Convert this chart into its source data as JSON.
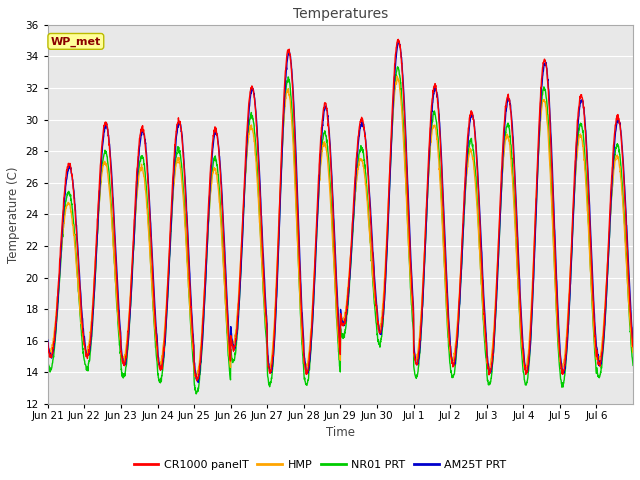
{
  "title": "Temperatures",
  "xlabel": "Time",
  "ylabel": "Temperature (C)",
  "ylim": [
    12,
    36
  ],
  "annotation_text": "WP_met",
  "annotation_color": "#8B0000",
  "annotation_bg": "#FFFF99",
  "fig_bg": "#FFFFFF",
  "plot_bg": "#E8E8E8",
  "grid_color": "#FFFFFF",
  "legend_entries": [
    "CR1000 panelT",
    "HMP",
    "NR01 PRT",
    "AM25T PRT"
  ],
  "legend_colors": [
    "#FF0000",
    "#FFA500",
    "#00CC00",
    "#0000CC"
  ],
  "line_width": 1.0,
  "tick_labels": [
    "Jun 21",
    "Jun 22",
    "Jun 23",
    "Jun 24",
    "Jun 25",
    "Jun 26",
    "Jun 27",
    "Jun 28",
    "Jun 29",
    "Jun 30",
    "Jul 1",
    "Jul 2",
    "Jul 3",
    "Jul 4",
    "Jul 5",
    "Jul 6"
  ],
  "num_days": 16,
  "day_peaks_cr1000": [
    27.2,
    29.8,
    29.5,
    30.0,
    29.4,
    32.1,
    34.4,
    31.0,
    30.0,
    35.1,
    32.2,
    30.5,
    31.5,
    33.8,
    31.5,
    30.2
  ],
  "day_mins_cr1000": [
    15.0,
    15.0,
    14.5,
    14.2,
    13.5,
    15.5,
    14.0,
    14.0,
    17.0,
    16.5,
    14.5,
    14.5,
    14.0,
    14.0,
    14.0,
    14.5
  ],
  "pts_per_day": 144
}
